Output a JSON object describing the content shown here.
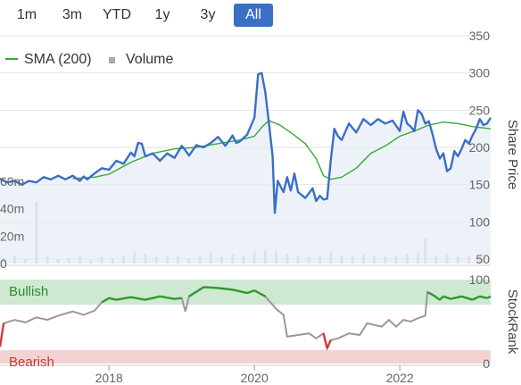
{
  "range_selector": {
    "tabs": [
      "1m",
      "3m",
      "YTD",
      "1y",
      "3y",
      "All"
    ],
    "active": "All",
    "active_color": "#3a6fc4"
  },
  "colors": {
    "price_line": "#3a6fc4",
    "price_area": "#e6edf7",
    "sma_line": "#3aa83a",
    "volume_bar": "#c8c8c8",
    "stockrank_line": "#999999",
    "stockrank_bullish_line": "#2e9a2e",
    "stockrank_bearish_line": "#d63a3a",
    "bullish_band": "#cfe8d2",
    "bearish_band": "#f5d2d2",
    "grid": "#e2e2e2"
  },
  "chart_data": [
    {
      "type": "line",
      "title": "",
      "legend": {
        "placement": "top-left",
        "items": [
          {
            "label": "SMA (200)",
            "symbol": "line"
          },
          {
            "label": "Volume",
            "symbol": "square"
          }
        ]
      },
      "xlabel": "",
      "ylabel": "Share Price",
      "grid": true,
      "x_range": [
        2016.5,
        2023.25
      ],
      "x_ticks": [
        {
          "value": 2018,
          "label": "2018"
        },
        {
          "value": 2020,
          "label": "2020"
        },
        {
          "value": 2022,
          "label": "2022"
        }
      ],
      "y_price_range": [
        50,
        350
      ],
      "y_price_ticks": [
        {
          "value": 350,
          "label": "350"
        },
        {
          "value": 300,
          "label": "300"
        },
        {
          "value": 250,
          "label": "250"
        },
        {
          "value": 200,
          "label": "200"
        },
        {
          "value": 150,
          "label": "150"
        },
        {
          "value": 100,
          "label": "100"
        },
        {
          "value": 50,
          "label": "50"
        }
      ],
      "y_volume_range": [
        0,
        75
      ],
      "y_volume_ticks": [
        {
          "value": 60,
          "label": "60m"
        },
        {
          "value": 40,
          "label": "40m"
        },
        {
          "value": 20,
          "label": "20m"
        },
        {
          "value": 0,
          "label": "0"
        }
      ],
      "series": [
        {
          "name": "Share Price",
          "points": [
            [
              2016.5,
              158
            ],
            [
              2016.6,
              153
            ],
            [
              2016.7,
              155
            ],
            [
              2016.8,
              150
            ],
            [
              2016.9,
              155
            ],
            [
              2017.0,
              153
            ],
            [
              2017.1,
              160
            ],
            [
              2017.2,
              157
            ],
            [
              2017.3,
              162
            ],
            [
              2017.4,
              157
            ],
            [
              2017.5,
              162
            ],
            [
              2017.6,
              155
            ],
            [
              2017.65,
              161
            ],
            [
              2017.7,
              157
            ],
            [
              2017.8,
              165
            ],
            [
              2017.9,
              172
            ],
            [
              2018.0,
              170
            ],
            [
              2018.1,
              182
            ],
            [
              2018.2,
              178
            ],
            [
              2018.3,
              193
            ],
            [
              2018.35,
              188
            ],
            [
              2018.4,
              206
            ],
            [
              2018.45,
              205
            ],
            [
              2018.5,
              188
            ],
            [
              2018.6,
              192
            ],
            [
              2018.7,
              182
            ],
            [
              2018.8,
              192
            ],
            [
              2018.9,
              186
            ],
            [
              2019.0,
              202
            ],
            [
              2019.05,
              196
            ],
            [
              2019.1,
              189
            ],
            [
              2019.2,
              203
            ],
            [
              2019.3,
              200
            ],
            [
              2019.4,
              206
            ],
            [
              2019.5,
              214
            ],
            [
              2019.6,
              202
            ],
            [
              2019.7,
              216
            ],
            [
              2019.75,
              206
            ],
            [
              2019.8,
              208
            ],
            [
              2019.9,
              217
            ],
            [
              2020.0,
              240
            ],
            [
              2020.05,
              298
            ],
            [
              2020.1,
              300
            ],
            [
              2020.15,
              274
            ],
            [
              2020.2,
              232
            ],
            [
              2020.25,
              188
            ],
            [
              2020.28,
              112
            ],
            [
              2020.32,
              155
            ],
            [
              2020.4,
              140
            ],
            [
              2020.45,
              160
            ],
            [
              2020.5,
              142
            ],
            [
              2020.55,
              165
            ],
            [
              2020.6,
              140
            ],
            [
              2020.7,
              132
            ],
            [
              2020.8,
              145
            ],
            [
              2020.85,
              128
            ],
            [
              2020.9,
              135
            ],
            [
              2020.95,
              130
            ],
            [
              2021.0,
              131
            ],
            [
              2021.05,
              182
            ],
            [
              2021.1,
              225
            ],
            [
              2021.15,
              215
            ],
            [
              2021.2,
              210
            ],
            [
              2021.3,
              232
            ],
            [
              2021.4,
              220
            ],
            [
              2021.5,
              238
            ],
            [
              2021.6,
              230
            ],
            [
              2021.7,
              238
            ],
            [
              2021.8,
              232
            ],
            [
              2021.9,
              236
            ],
            [
              2022.0,
              222
            ],
            [
              2022.05,
              248
            ],
            [
              2022.1,
              232
            ],
            [
              2022.15,
              228
            ],
            [
              2022.2,
              222
            ],
            [
              2022.25,
              250
            ],
            [
              2022.3,
              245
            ],
            [
              2022.35,
              232
            ],
            [
              2022.4,
              235
            ],
            [
              2022.45,
              218
            ],
            [
              2022.5,
              198
            ],
            [
              2022.55,
              185
            ],
            [
              2022.6,
              192
            ],
            [
              2022.65,
              168
            ],
            [
              2022.7,
              172
            ],
            [
              2022.75,
              195
            ],
            [
              2022.8,
              188
            ],
            [
              2022.85,
              198
            ],
            [
              2022.9,
              210
            ],
            [
              2022.95,
              205
            ],
            [
              2023.0,
              216
            ],
            [
              2023.05,
              225
            ],
            [
              2023.1,
              238
            ],
            [
              2023.15,
              230
            ],
            [
              2023.2,
              232
            ],
            [
              2023.25,
              240
            ]
          ]
        },
        {
          "name": "SMA (200)",
          "points": [
            [
              2017.5,
              158
            ],
            [
              2017.8,
              160
            ],
            [
              2018.0,
              164
            ],
            [
              2018.3,
              180
            ],
            [
              2018.6,
              192
            ],
            [
              2018.9,
              198
            ],
            [
              2019.2,
              200
            ],
            [
              2019.5,
              205
            ],
            [
              2019.8,
              210
            ],
            [
              2020.0,
              215
            ],
            [
              2020.1,
              227
            ],
            [
              2020.2,
              236
            ],
            [
              2020.35,
              230
            ],
            [
              2020.5,
              220
            ],
            [
              2020.7,
              205
            ],
            [
              2020.85,
              185
            ],
            [
              2020.95,
              162
            ],
            [
              2021.05,
              157
            ],
            [
              2021.2,
              160
            ],
            [
              2021.4,
              172
            ],
            [
              2021.6,
              192
            ],
            [
              2021.8,
              202
            ],
            [
              2022.0,
              215
            ],
            [
              2022.2,
              222
            ],
            [
              2022.4,
              230
            ],
            [
              2022.6,
              234
            ],
            [
              2022.8,
              232
            ],
            [
              2023.0,
              228
            ],
            [
              2023.25,
              225
            ]
          ]
        },
        {
          "name": "Volume",
          "points": [
            [
              2016.55,
              4
            ],
            [
              2016.7,
              6
            ],
            [
              2016.85,
              3
            ],
            [
              2017.0,
              45
            ],
            [
              2017.15,
              5
            ],
            [
              2017.3,
              3
            ],
            [
              2017.45,
              4
            ],
            [
              2017.6,
              6
            ],
            [
              2017.75,
              3
            ],
            [
              2017.9,
              5
            ],
            [
              2018.05,
              4
            ],
            [
              2018.2,
              6
            ],
            [
              2018.35,
              8
            ],
            [
              2018.5,
              7
            ],
            [
              2018.65,
              5
            ],
            [
              2018.8,
              6
            ],
            [
              2018.95,
              5
            ],
            [
              2019.1,
              4
            ],
            [
              2019.25,
              6
            ],
            [
              2019.4,
              8
            ],
            [
              2019.55,
              5
            ],
            [
              2019.7,
              7
            ],
            [
              2019.85,
              6
            ],
            [
              2020.0,
              8
            ],
            [
              2020.15,
              10
            ],
            [
              2020.3,
              9
            ],
            [
              2020.45,
              7
            ],
            [
              2020.6,
              6
            ],
            [
              2020.75,
              5
            ],
            [
              2020.9,
              6
            ],
            [
              2021.05,
              9
            ],
            [
              2021.2,
              6
            ],
            [
              2021.35,
              5
            ],
            [
              2021.5,
              7
            ],
            [
              2021.65,
              6
            ],
            [
              2021.8,
              5
            ],
            [
              2021.95,
              6
            ],
            [
              2022.1,
              7
            ],
            [
              2022.25,
              8
            ],
            [
              2022.35,
              18
            ],
            [
              2022.5,
              6
            ],
            [
              2022.65,
              7
            ],
            [
              2022.8,
              5
            ],
            [
              2022.95,
              6
            ],
            [
              2023.1,
              5
            ]
          ]
        }
      ]
    },
    {
      "type": "line",
      "title": "",
      "ylabel": "StockRank",
      "y_range": [
        0,
        100
      ],
      "y_ticks": [
        {
          "value": 100,
          "label": "100"
        },
        {
          "value": 0,
          "label": "0"
        }
      ],
      "bands": [
        {
          "label": "Bullish",
          "from": 70,
          "to": 100
        },
        {
          "label": "Bearish",
          "from": 0,
          "to": 16
        }
      ],
      "series": [
        {
          "name": "StockRank",
          "points": [
            [
              2016.5,
              20
            ],
            [
              2016.55,
              48
            ],
            [
              2016.7,
              52
            ],
            [
              2016.85,
              49
            ],
            [
              2017.0,
              55
            ],
            [
              2017.15,
              52
            ],
            [
              2017.3,
              57
            ],
            [
              2017.5,
              62
            ],
            [
              2017.65,
              58
            ],
            [
              2017.8,
              63
            ],
            [
              2017.9,
              73
            ],
            [
              2018.0,
              78
            ],
            [
              2018.1,
              76
            ],
            [
              2018.3,
              79
            ],
            [
              2018.5,
              76
            ],
            [
              2018.7,
              80
            ],
            [
              2018.9,
              77
            ],
            [
              2019.0,
              78
            ],
            [
              2019.05,
              62
            ],
            [
              2019.1,
              80
            ],
            [
              2019.3,
              91
            ],
            [
              2019.5,
              90
            ],
            [
              2019.7,
              88
            ],
            [
              2019.9,
              84
            ],
            [
              2020.0,
              87
            ],
            [
              2020.15,
              80
            ],
            [
              2020.3,
              65
            ],
            [
              2020.4,
              58
            ],
            [
              2020.45,
              32
            ],
            [
              2020.6,
              34
            ],
            [
              2020.75,
              36
            ],
            [
              2020.85,
              30
            ],
            [
              2020.95,
              36
            ],
            [
              2021.0,
              18
            ],
            [
              2021.05,
              28
            ],
            [
              2021.15,
              30
            ],
            [
              2021.3,
              36
            ],
            [
              2021.45,
              34
            ],
            [
              2021.55,
              48
            ],
            [
              2021.65,
              46
            ],
            [
              2021.75,
              44
            ],
            [
              2021.85,
              52
            ],
            [
              2021.95,
              44
            ],
            [
              2022.05,
              52
            ],
            [
              2022.15,
              50
            ],
            [
              2022.25,
              54
            ],
            [
              2022.35,
              57
            ],
            [
              2022.38,
              85
            ],
            [
              2022.45,
              82
            ],
            [
              2022.55,
              76
            ],
            [
              2022.6,
              80
            ],
            [
              2022.7,
              77
            ],
            [
              2022.85,
              80
            ],
            [
              2023.0,
              76
            ],
            [
              2023.1,
              80
            ],
            [
              2023.2,
              78
            ],
            [
              2023.25,
              80
            ]
          ]
        }
      ]
    }
  ]
}
